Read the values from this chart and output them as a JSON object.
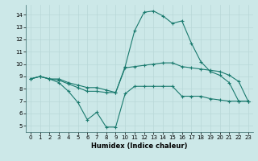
{
  "title": "",
  "xlabel": "Humidex (Indice chaleur)",
  "xlim": [
    -0.5,
    23.5
  ],
  "ylim": [
    4.5,
    14.8
  ],
  "xticks": [
    0,
    1,
    2,
    3,
    4,
    5,
    6,
    7,
    8,
    9,
    10,
    11,
    12,
    13,
    14,
    15,
    16,
    17,
    18,
    19,
    20,
    21,
    22,
    23
  ],
  "yticks": [
    5,
    6,
    7,
    8,
    9,
    10,
    11,
    12,
    13,
    14
  ],
  "bg_color": "#cce8e8",
  "grid_color": "#b8d8d8",
  "line_color": "#1a7a6e",
  "line1_x": [
    0,
    1,
    2,
    3,
    4,
    5,
    6,
    7,
    8,
    9,
    10,
    11,
    12,
    13,
    14,
    15,
    16,
    17,
    18,
    19,
    20,
    21,
    22,
    23
  ],
  "line1_y": [
    8.8,
    9.0,
    8.8,
    8.5,
    7.8,
    6.9,
    5.5,
    6.1,
    4.9,
    4.9,
    7.6,
    8.2,
    8.2,
    8.2,
    8.2,
    8.2,
    7.4,
    7.4,
    7.4,
    7.2,
    7.1,
    7.0,
    7.0,
    7.0
  ],
  "line2_x": [
    0,
    1,
    2,
    3,
    4,
    5,
    6,
    7,
    8,
    9,
    10,
    11,
    12,
    13,
    14,
    15,
    16,
    17,
    18,
    19,
    20,
    21,
    22,
    23
  ],
  "line2_y": [
    8.8,
    9.0,
    8.8,
    8.8,
    8.5,
    8.3,
    8.1,
    8.1,
    7.9,
    7.7,
    9.7,
    9.8,
    9.9,
    10.0,
    10.1,
    10.1,
    9.8,
    9.7,
    9.6,
    9.5,
    9.4,
    9.1,
    8.6,
    7.0
  ],
  "line3_x": [
    0,
    1,
    2,
    3,
    4,
    5,
    6,
    7,
    8,
    9,
    10,
    11,
    12,
    13,
    14,
    15,
    16,
    17,
    18,
    19,
    20,
    21,
    22,
    23
  ],
  "line3_y": [
    8.8,
    9.0,
    8.8,
    8.7,
    8.4,
    8.1,
    7.8,
    7.8,
    7.7,
    7.7,
    9.8,
    12.7,
    14.2,
    14.3,
    13.9,
    13.3,
    13.5,
    11.7,
    10.2,
    9.4,
    9.1,
    8.5,
    7.0,
    7.0
  ],
  "tick_fontsize": 5,
  "xlabel_fontsize": 6,
  "lw": 0.8,
  "ms": 2.5
}
